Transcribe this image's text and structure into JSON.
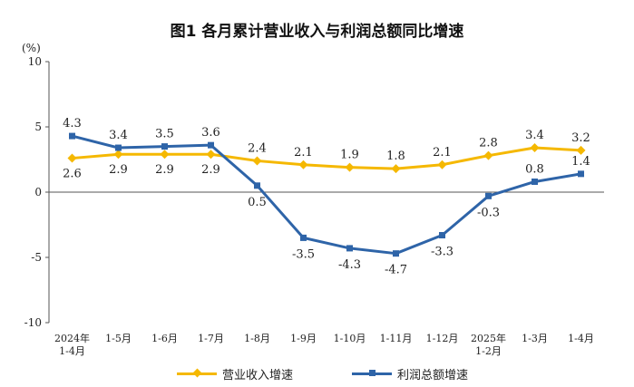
{
  "page": {
    "title": "图1  各月累计营业收入与利润总额同比增速",
    "unit": "(%)"
  },
  "colors": {
    "revenue": "#F5B800",
    "profit": "#2E64A8",
    "axis": "#555555"
  },
  "chart_data": {
    "type": "line",
    "title": "图1  各月累计营业收入与利润总额同比增速",
    "ylabel": "(%)",
    "ylim": [
      -10,
      10
    ],
    "yticks": [
      "10",
      "5",
      "0",
      "-5",
      "-10"
    ],
    "grid": false,
    "legend_position": "bottom",
    "categories": [
      [
        "2024年",
        "1-4月"
      ],
      [
        "1-5月"
      ],
      [
        "1-6月"
      ],
      [
        "1-7月"
      ],
      [
        "1-8月"
      ],
      [
        "1-9月"
      ],
      [
        "1-10月"
      ],
      [
        "1-11月"
      ],
      [
        "1-12月"
      ],
      [
        "2025年",
        "1-2月"
      ],
      [
        "1-3月"
      ],
      [
        "1-4月"
      ]
    ],
    "series": [
      {
        "name": "营业收入增速",
        "values": [
          2.6,
          2.9,
          2.9,
          2.9,
          2.4,
          2.1,
          1.9,
          1.8,
          2.1,
          2.8,
          3.4,
          3.2
        ],
        "labels": [
          "2.6",
          "2.9",
          "2.9",
          "2.9",
          "2.4",
          "2.1",
          "1.9",
          "1.8",
          "2.1",
          "2.8",
          "3.4",
          "3.2"
        ],
        "marker": "diamond"
      },
      {
        "name": "利润总额增速",
        "values": [
          4.3,
          3.4,
          3.5,
          3.6,
          0.5,
          -3.5,
          -4.3,
          -4.7,
          -3.3,
          -0.3,
          0.8,
          1.4
        ],
        "labels": [
          "4.3",
          "3.4",
          "3.5",
          "3.6",
          "0.5",
          "-3.5",
          "-4.3",
          "-4.7",
          "-3.3",
          "-0.3",
          "0.8",
          "1.4"
        ],
        "marker": "square"
      }
    ]
  }
}
